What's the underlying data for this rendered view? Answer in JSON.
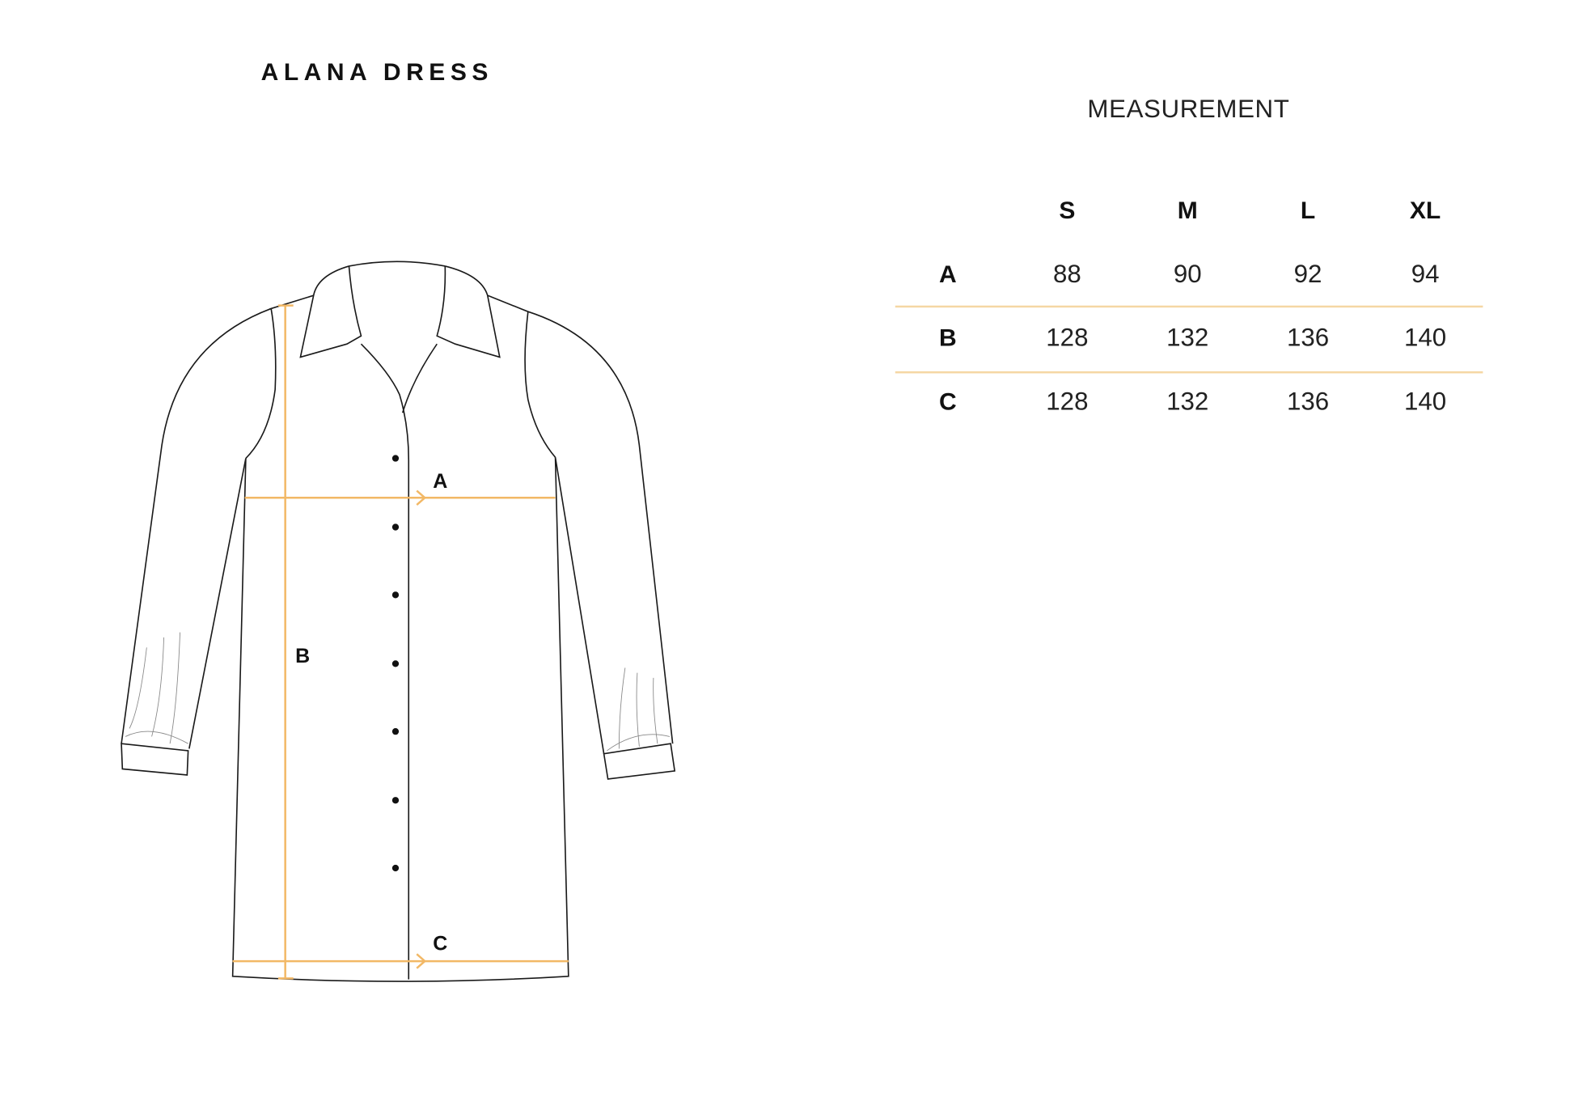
{
  "title": "ALANA DRESS",
  "table": {
    "heading": "MEASUREMENT",
    "sizes": [
      "S",
      "M",
      "L",
      "XL"
    ],
    "rows": [
      {
        "label": "A",
        "values": [
          "88",
          "90",
          "92",
          "94"
        ]
      },
      {
        "label": "B",
        "values": [
          "128",
          "132",
          "136",
          "140"
        ]
      },
      {
        "label": "C",
        "values": [
          "128",
          "132",
          "136",
          "140"
        ]
      }
    ],
    "divider_color": "#f5d7a4"
  },
  "diagram": {
    "labels": {
      "a": "A",
      "b": "B",
      "c": "C"
    },
    "measure_color": "#f2b866",
    "outline_color": "#1a1a1a"
  }
}
